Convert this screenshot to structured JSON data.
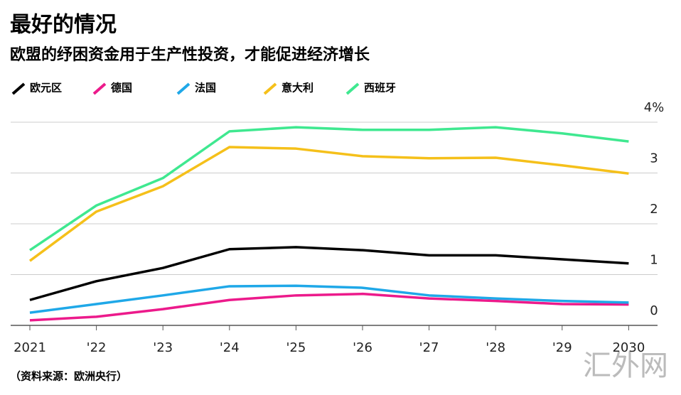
{
  "chart_data": {
    "type": "line",
    "title": "最好的情况",
    "subtitle": "欧盟的纾困资金用于生产性投资，才能促进经济增长",
    "source": "（资料来源：欧洲央行）",
    "watermark": "汇外网",
    "categories": [
      "2021",
      "'22",
      "'23",
      "'24",
      "'25",
      "'26",
      "'27",
      "'28",
      "'29",
      "2030"
    ],
    "series": [
      {
        "name": "欧元区",
        "color": "#000000",
        "values": [
          0.5,
          0.87,
          1.13,
          1.5,
          1.54,
          1.48,
          1.38,
          1.38,
          1.3,
          1.22
        ]
      },
      {
        "name": "德国",
        "color": "#ec1a8b",
        "values": [
          0.1,
          0.17,
          0.32,
          0.5,
          0.59,
          0.62,
          0.53,
          0.48,
          0.42,
          0.41
        ]
      },
      {
        "name": "法国",
        "color": "#1fa8e8",
        "values": [
          0.25,
          0.42,
          0.59,
          0.77,
          0.78,
          0.74,
          0.59,
          0.53,
          0.48,
          0.45
        ]
      },
      {
        "name": "意大利",
        "color": "#f5c01a",
        "values": [
          1.27,
          2.24,
          2.74,
          3.51,
          3.48,
          3.33,
          3.29,
          3.3,
          3.15,
          2.99
        ]
      },
      {
        "name": "西班牙",
        "color": "#3fe890",
        "values": [
          1.48,
          2.36,
          2.9,
          3.82,
          3.9,
          3.85,
          3.85,
          3.9,
          3.78,
          3.62
        ]
      }
    ],
    "ylim": [
      0,
      4
    ],
    "yticks": [
      0,
      1,
      2,
      3,
      {
        "value": 4,
        "label": "4%"
      }
    ],
    "grid": true
  }
}
